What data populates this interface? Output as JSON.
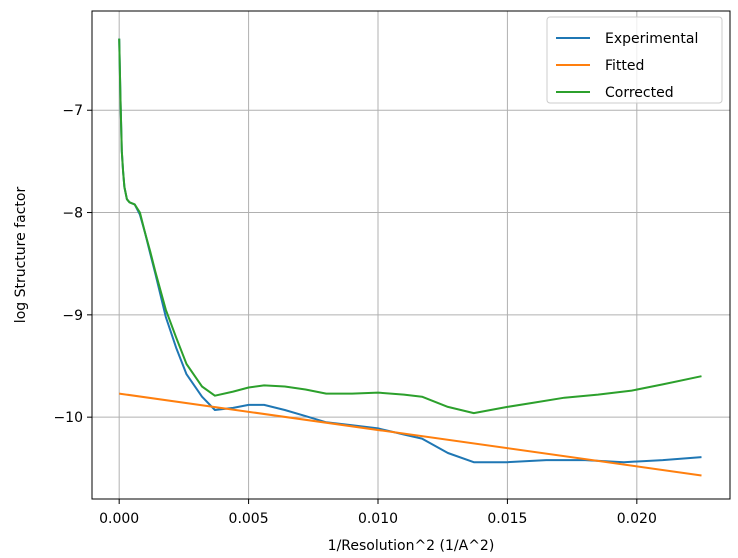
{
  "chart_data": {
    "type": "line",
    "xlabel": "1/Resolution^2 (1/A^2)",
    "ylabel": "log Structure factor",
    "xlim": [
      -0.00105,
      0.0236
    ],
    "ylim": [
      -10.8,
      -6.03
    ],
    "xticks": [
      0.0,
      0.005,
      0.01,
      0.015,
      0.02
    ],
    "xtick_labels": [
      "0.000",
      "0.005",
      "0.010",
      "0.015",
      "0.020"
    ],
    "yticks": [
      -10,
      -9,
      -8,
      -7
    ],
    "ytick_labels": [
      "−10",
      "−9",
      "−8",
      "−7"
    ],
    "grid": true,
    "legend_position": "top-right",
    "series": [
      {
        "name": "Experimental",
        "color": "#1f77b4",
        "x": [
          0.0,
          5e-05,
          0.0001,
          0.00015,
          0.0002,
          0.0003,
          0.0004,
          0.0006,
          0.0008,
          0.001,
          0.0012,
          0.0014,
          0.0018,
          0.0022,
          0.0026,
          0.0032,
          0.0037,
          0.0044,
          0.005,
          0.0056,
          0.0064,
          0.0072,
          0.008,
          0.009,
          0.01,
          0.011,
          0.0117,
          0.0127,
          0.0137,
          0.015,
          0.0165,
          0.018,
          0.0195,
          0.021,
          0.0225
        ],
        "y": [
          -6.3,
          -6.9,
          -7.4,
          -7.6,
          -7.75,
          -7.87,
          -7.9,
          -7.92,
          -8.02,
          -8.2,
          -8.4,
          -8.6,
          -9.02,
          -9.32,
          -9.58,
          -9.8,
          -9.93,
          -9.91,
          -9.88,
          -9.88,
          -9.93,
          -9.99,
          -10.05,
          -10.08,
          -10.11,
          -10.17,
          -10.21,
          -10.35,
          -10.44,
          -10.44,
          -10.42,
          -10.42,
          -10.44,
          -10.42,
          -10.39
        ]
      },
      {
        "name": "Fitted",
        "color": "#ff7f0e",
        "x": [
          0.0,
          0.0225
        ],
        "y": [
          -9.77,
          -10.57
        ]
      },
      {
        "name": "Corrected",
        "color": "#2ca02c",
        "x": [
          0.0,
          5e-05,
          0.0001,
          0.00015,
          0.0002,
          0.0003,
          0.0004,
          0.0006,
          0.0008,
          0.001,
          0.0012,
          0.0014,
          0.0018,
          0.0022,
          0.0026,
          0.0032,
          0.0037,
          0.0044,
          0.005,
          0.0056,
          0.0064,
          0.0072,
          0.008,
          0.009,
          0.01,
          0.011,
          0.0117,
          0.0127,
          0.0137,
          0.015,
          0.016,
          0.0172,
          0.0185,
          0.0198,
          0.021,
          0.0225
        ],
        "y": [
          -6.3,
          -6.9,
          -7.4,
          -7.6,
          -7.75,
          -7.87,
          -7.9,
          -7.92,
          -8.0,
          -8.2,
          -8.38,
          -8.58,
          -8.95,
          -9.22,
          -9.48,
          -9.7,
          -9.79,
          -9.75,
          -9.71,
          -9.69,
          -9.7,
          -9.73,
          -9.77,
          -9.77,
          -9.76,
          -9.78,
          -9.8,
          -9.9,
          -9.96,
          -9.9,
          -9.86,
          -9.81,
          -9.78,
          -9.74,
          -9.68,
          -9.6
        ]
      }
    ]
  }
}
